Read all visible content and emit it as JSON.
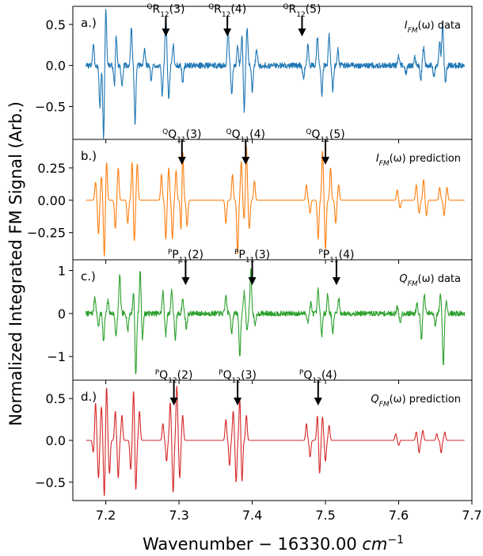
{
  "chart_data": {
    "type": "line",
    "xlabel_main": "Wavenumber − 16330.00 ",
    "xlabel_unit": "cm",
    "xlabel_exp": "−1",
    "ylabel": "Normalized Integrated FM Signal (Arb.)",
    "xlim": [
      7.155,
      7.7
    ],
    "xticks": [
      "7.2",
      "7.3",
      "7.4",
      "7.5",
      "7.6",
      "7.7"
    ],
    "xtick_values": [
      7.2,
      7.3,
      7.4,
      7.5,
      7.6,
      7.7
    ],
    "panels": [
      {
        "label": "a.)",
        "legend_sym": "I",
        "legend_sub": "FM",
        "legend_rest": "(ω) data",
        "color": "#1f77b4",
        "ylim": [
          -0.9,
          0.72
        ],
        "yticks": [
          "0.5",
          "0.0",
          "−0.5"
        ],
        "ytick_values": [
          0.5,
          0.0,
          -0.5
        ],
        "noise": 0.035,
        "seed": 3,
        "peaks": [
          [
            7.183,
            0.25
          ],
          [
            7.192,
            -0.5
          ],
          [
            7.197,
            -0.88
          ],
          [
            7.2,
            0.7
          ],
          [
            7.212,
            -0.3
          ],
          [
            7.214,
            0.4
          ],
          [
            7.222,
            -0.25
          ],
          [
            7.235,
            0.45
          ],
          [
            7.24,
            -0.7
          ],
          [
            7.253,
            0.2
          ],
          [
            7.262,
            -0.18
          ],
          [
            7.277,
            -0.35
          ],
          [
            7.282,
            0.6
          ],
          [
            7.286,
            -0.4
          ],
          [
            7.292,
            0.25
          ],
          [
            7.305,
            -0.2
          ],
          [
            7.367,
            0.42
          ],
          [
            7.372,
            -0.35
          ],
          [
            7.38,
            0.25
          ],
          [
            7.386,
            0.4
          ],
          [
            7.389,
            -0.55
          ],
          [
            7.393,
            0.45
          ],
          [
            7.4,
            -0.3
          ],
          [
            7.406,
            0.2
          ],
          [
            7.47,
            -0.18
          ],
          [
            7.476,
            0.25
          ],
          [
            7.489,
            0.35
          ],
          [
            7.495,
            -0.35
          ],
          [
            7.505,
            0.38
          ],
          [
            7.51,
            -0.3
          ],
          [
            7.517,
            0.2
          ],
          [
            7.6,
            0.12
          ],
          [
            7.61,
            -0.1
          ],
          [
            7.622,
            0.1
          ],
          [
            7.63,
            -0.18
          ],
          [
            7.634,
            0.22
          ],
          [
            7.648,
            -0.14
          ],
          [
            7.656,
            0.28
          ],
          [
            7.66,
            0.52
          ],
          [
            7.664,
            -0.2
          ]
        ],
        "arrows": [
          {
            "x": 7.282,
            "pre": "Q",
            "letter": "R",
            "sub": "12",
            "n": "(3)"
          },
          {
            "x": 7.366,
            "pre": "Q",
            "letter": "R",
            "sub": "12",
            "n": "(4)"
          },
          {
            "x": 7.468,
            "pre": "Q",
            "letter": "R",
            "sub": "12",
            "n": "(5)"
          }
        ]
      },
      {
        "label": "b.)",
        "legend_sym": "I",
        "legend_sub": "FM",
        "legend_rest": "(ω) prediction",
        "color": "#ff7f0e",
        "ylim": [
          -0.46,
          0.47
        ],
        "yticks": [
          "0.25",
          "0.00",
          "−0.25"
        ],
        "ytick_values": [
          0.25,
          0.0,
          -0.25
        ],
        "noise": 0,
        "seed": 1,
        "peaks": [
          [
            7.186,
            0.14
          ],
          [
            7.19,
            -0.26
          ],
          [
            7.194,
            0.18
          ],
          [
            7.198,
            -0.44
          ],
          [
            7.201,
            0.3
          ],
          [
            7.213,
            -0.22
          ],
          [
            7.217,
            0.25
          ],
          [
            7.23,
            -0.18
          ],
          [
            7.236,
            0.3
          ],
          [
            7.239,
            -0.32
          ],
          [
            7.243,
            0.28
          ],
          [
            7.276,
            0.2
          ],
          [
            7.282,
            -0.3
          ],
          [
            7.286,
            0.25
          ],
          [
            7.291,
            -0.3
          ],
          [
            7.296,
            0.23
          ],
          [
            7.303,
            -0.28
          ],
          [
            7.305,
            0.42
          ],
          [
            7.311,
            -0.2
          ],
          [
            7.364,
            -0.18
          ],
          [
            7.373,
            0.2
          ],
          [
            7.38,
            -0.42
          ],
          [
            7.385,
            0.3
          ],
          [
            7.389,
            -0.15
          ],
          [
            7.392,
            0.42
          ],
          [
            7.396,
            -0.22
          ],
          [
            7.403,
            0.15
          ],
          [
            7.474,
            0.12
          ],
          [
            7.479,
            -0.1
          ],
          [
            7.49,
            -0.3
          ],
          [
            7.496,
            0.38
          ],
          [
            7.5,
            -0.38
          ],
          [
            7.507,
            0.25
          ],
          [
            7.514,
            -0.18
          ],
          [
            7.518,
            0.12
          ],
          [
            7.598,
            0.08
          ],
          [
            7.602,
            -0.06
          ],
          [
            7.624,
            0.12
          ],
          [
            7.628,
            -0.1
          ],
          [
            7.634,
            0.16
          ],
          [
            7.638,
            -0.12
          ],
          [
            7.656,
            0.1
          ],
          [
            7.662,
            -0.12
          ],
          [
            7.666,
            0.1
          ]
        ],
        "arrows": [
          {
            "x": 7.304,
            "pre": "Q",
            "letter": "Q",
            "sub": "11",
            "n": "(3)"
          },
          {
            "x": 7.391,
            "pre": "Q",
            "letter": "Q",
            "sub": "11",
            "n": "(4)"
          },
          {
            "x": 7.5,
            "pre": "Q",
            "letter": "Q",
            "sub": "11",
            "n": "(5)"
          }
        ]
      },
      {
        "label": "c.)",
        "legend_sym": "Q",
        "legend_sub": "FM",
        "legend_rest": "(ω) data",
        "color": "#2ca02c",
        "ylim": [
          -1.55,
          1.25
        ],
        "yticks": [
          "1",
          "0",
          "−1"
        ],
        "ytick_values": [
          1,
          0,
          -1
        ],
        "noise": 0.06,
        "seed": 7,
        "peaks": [
          [
            7.185,
            0.4
          ],
          [
            7.19,
            -0.3
          ],
          [
            7.197,
            -0.65
          ],
          [
            7.203,
            0.3
          ],
          [
            7.214,
            -0.55
          ],
          [
            7.219,
            0.9
          ],
          [
            7.23,
            -0.4
          ],
          [
            7.238,
            0.5
          ],
          [
            7.241,
            -1.45
          ],
          [
            7.247,
            1.0
          ],
          [
            7.25,
            -0.6
          ],
          [
            7.278,
            0.5
          ],
          [
            7.282,
            -0.5
          ],
          [
            7.29,
            0.55
          ],
          [
            7.295,
            -0.6
          ],
          [
            7.305,
            0.35
          ],
          [
            7.31,
            -0.35
          ],
          [
            7.364,
            0.42
          ],
          [
            7.372,
            -0.45
          ],
          [
            7.383,
            -1.0
          ],
          [
            7.389,
            0.5
          ],
          [
            7.393,
            -0.4
          ],
          [
            7.398,
            1.0
          ],
          [
            7.404,
            -0.3
          ],
          [
            7.476,
            -0.2
          ],
          [
            7.48,
            0.25
          ],
          [
            7.49,
            0.55
          ],
          [
            7.495,
            -0.5
          ],
          [
            7.503,
            0.45
          ],
          [
            7.51,
            -0.45
          ],
          [
            7.518,
            0.35
          ],
          [
            7.598,
            0.15
          ],
          [
            7.602,
            -0.2
          ],
          [
            7.625,
            0.25
          ],
          [
            7.631,
            -0.6
          ],
          [
            7.635,
            0.45
          ],
          [
            7.65,
            -0.3
          ],
          [
            7.657,
            0.45
          ],
          [
            7.661,
            -1.2
          ],
          [
            7.665,
            0.3
          ]
        ],
        "arrows": [
          {
            "x": 7.309,
            "pre": "P",
            "letter": "P",
            "sub": "11",
            "n": "(2)"
          },
          {
            "x": 7.4,
            "pre": "P",
            "letter": "P",
            "sub": "11",
            "n": "(3)"
          },
          {
            "x": 7.515,
            "pre": "P",
            "letter": "P",
            "sub": "11",
            "n": "(4)"
          }
        ]
      },
      {
        "label": "d.)",
        "legend_sym": "Q",
        "legend_sub": "FM",
        "legend_rest": "(ω) prediction",
        "color": "#d62728",
        "ylim": [
          -0.72,
          0.72
        ],
        "yticks": [
          "0.5",
          "0.0",
          "−0.5"
        ],
        "ytick_values": [
          0.5,
          0.0,
          -0.5
        ],
        "noise": 0,
        "seed": 2,
        "peaks": [
          [
            7.183,
            -0.15
          ],
          [
            7.186,
            0.45
          ],
          [
            7.19,
            -0.45
          ],
          [
            7.194,
            0.4
          ],
          [
            7.198,
            -0.68
          ],
          [
            7.201,
            0.65
          ],
          [
            7.205,
            -0.4
          ],
          [
            7.213,
            0.35
          ],
          [
            7.217,
            -0.45
          ],
          [
            7.222,
            0.3
          ],
          [
            7.234,
            -0.35
          ],
          [
            7.238,
            0.6
          ],
          [
            7.241,
            -0.6
          ],
          [
            7.246,
            0.35
          ],
          [
            7.278,
            0.2
          ],
          [
            7.283,
            -0.25
          ],
          [
            7.288,
            0.45
          ],
          [
            7.292,
            -0.62
          ],
          [
            7.297,
            0.65
          ],
          [
            7.301,
            -0.45
          ],
          [
            7.305,
            0.3
          ],
          [
            7.364,
            0.25
          ],
          [
            7.369,
            -0.3
          ],
          [
            7.374,
            0.35
          ],
          [
            7.378,
            -0.5
          ],
          [
            7.383,
            0.5
          ],
          [
            7.386,
            -0.5
          ],
          [
            7.392,
            0.3
          ],
          [
            7.474,
            0.2
          ],
          [
            7.479,
            -0.2
          ],
          [
            7.489,
            0.3
          ],
          [
            7.492,
            -0.4
          ],
          [
            7.496,
            0.28
          ],
          [
            7.5,
            -0.25
          ],
          [
            7.505,
            0.18
          ],
          [
            7.596,
            0.08
          ],
          [
            7.6,
            -0.06
          ],
          [
            7.624,
            0.1
          ],
          [
            7.628,
            -0.15
          ],
          [
            7.633,
            0.12
          ],
          [
            7.652,
            0.08
          ],
          [
            7.658,
            -0.15
          ],
          [
            7.663,
            0.1
          ]
        ],
        "arrows": [
          {
            "x": 7.293,
            "pre": "P",
            "letter": "Q",
            "sub": "12",
            "n": "(2)"
          },
          {
            "x": 7.38,
            "pre": "P",
            "letter": "Q",
            "sub": "12",
            "n": "(3)"
          },
          {
            "x": 7.49,
            "pre": "P",
            "letter": "Q",
            "sub": "12",
            "n": "(4)"
          }
        ]
      }
    ]
  }
}
